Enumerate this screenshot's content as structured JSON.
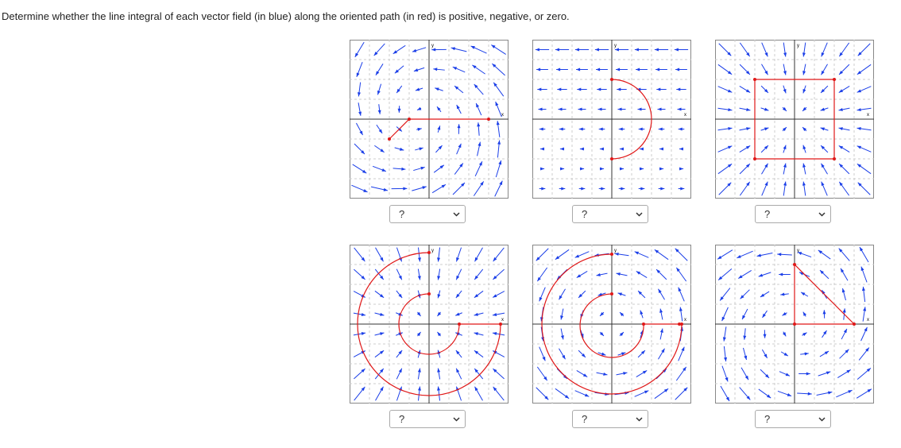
{
  "instruction": "Determine whether the line integral of each vector field (in blue) along the oriented path (in red) is positive, negative, or zero.",
  "panels": [
    {
      "axis_x": "x",
      "axis_y": "y",
      "select": "?"
    },
    {
      "axis_x": "x",
      "axis_y": "y",
      "select": "?"
    },
    {
      "axis_x": "x",
      "axis_y": "y",
      "select": "?"
    },
    {
      "axis_x": "x",
      "axis_y": "y",
      "select": "?"
    },
    {
      "axis_x": "x",
      "axis_y": "y",
      "select": "?"
    },
    {
      "axis_x": "x",
      "axis_y": "y",
      "select": "?"
    }
  ]
}
